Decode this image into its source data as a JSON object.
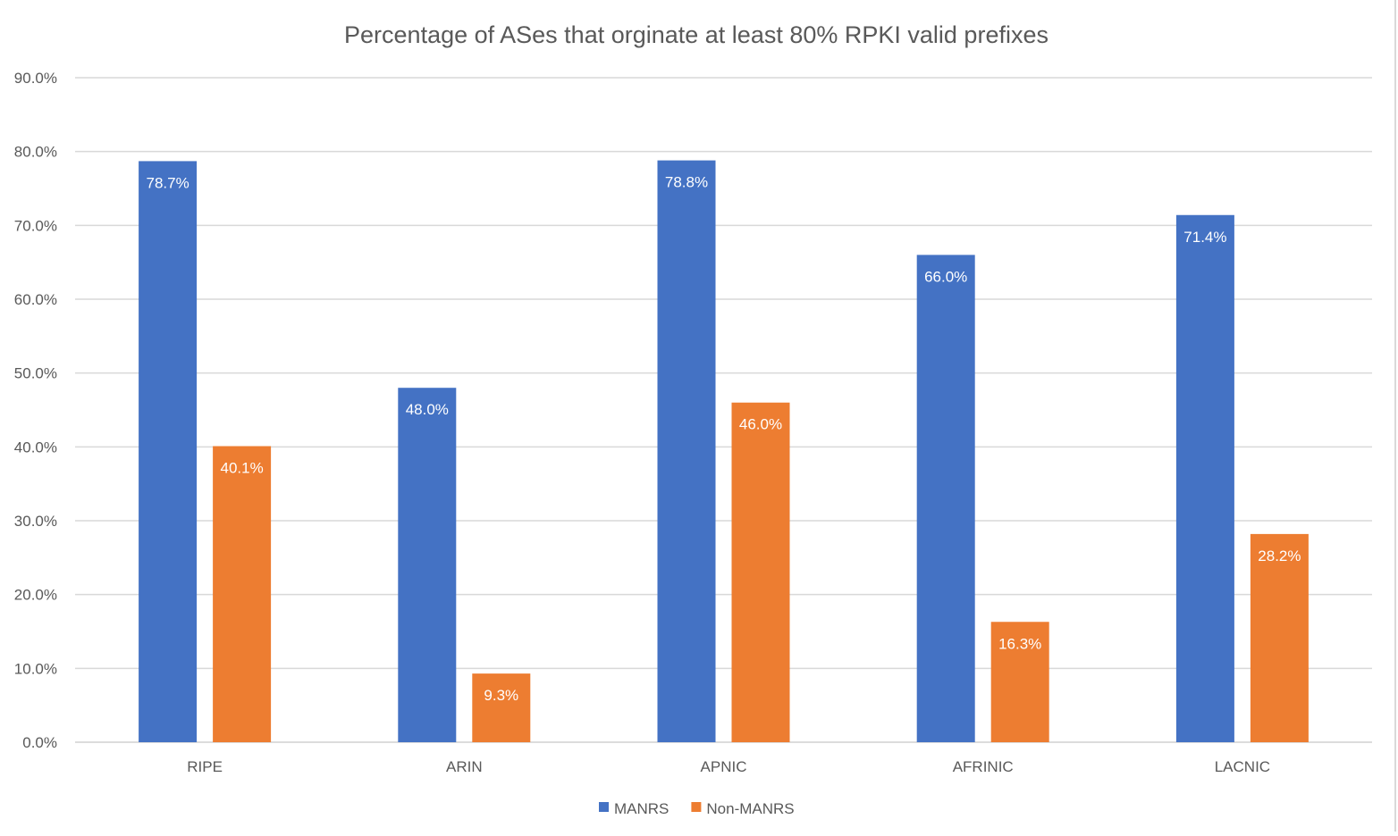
{
  "chart_data": {
    "type": "bar",
    "title": "Percentage of ASes that orginate at least 80% RPKI valid prefixes",
    "xlabel": "",
    "ylabel": "",
    "categories": [
      "RIPE",
      "ARIN",
      "APNIC",
      "AFRINIC",
      "LACNIC"
    ],
    "series": [
      {
        "name": "MANRS",
        "color": "#4472C4",
        "values": [
          78.7,
          48.0,
          78.8,
          66.0,
          71.4
        ],
        "labels": [
          "78.7%",
          "48.0%",
          "78.8%",
          "66.0%",
          "71.4%"
        ]
      },
      {
        "name": "Non-MANRS",
        "color": "#ED7D31",
        "values": [
          40.1,
          9.3,
          46.0,
          16.3,
          28.2
        ],
        "labels": [
          "40.1%",
          "9.3%",
          "46.0%",
          "16.3%",
          "28.2%"
        ]
      }
    ],
    "ylim": [
      0,
      90
    ],
    "yticks": [
      "0.0%",
      "10.0%",
      "20.0%",
      "30.0%",
      "40.0%",
      "50.0%",
      "60.0%",
      "70.0%",
      "80.0%",
      "90.0%"
    ],
    "grid": true,
    "legend": "bottom"
  }
}
